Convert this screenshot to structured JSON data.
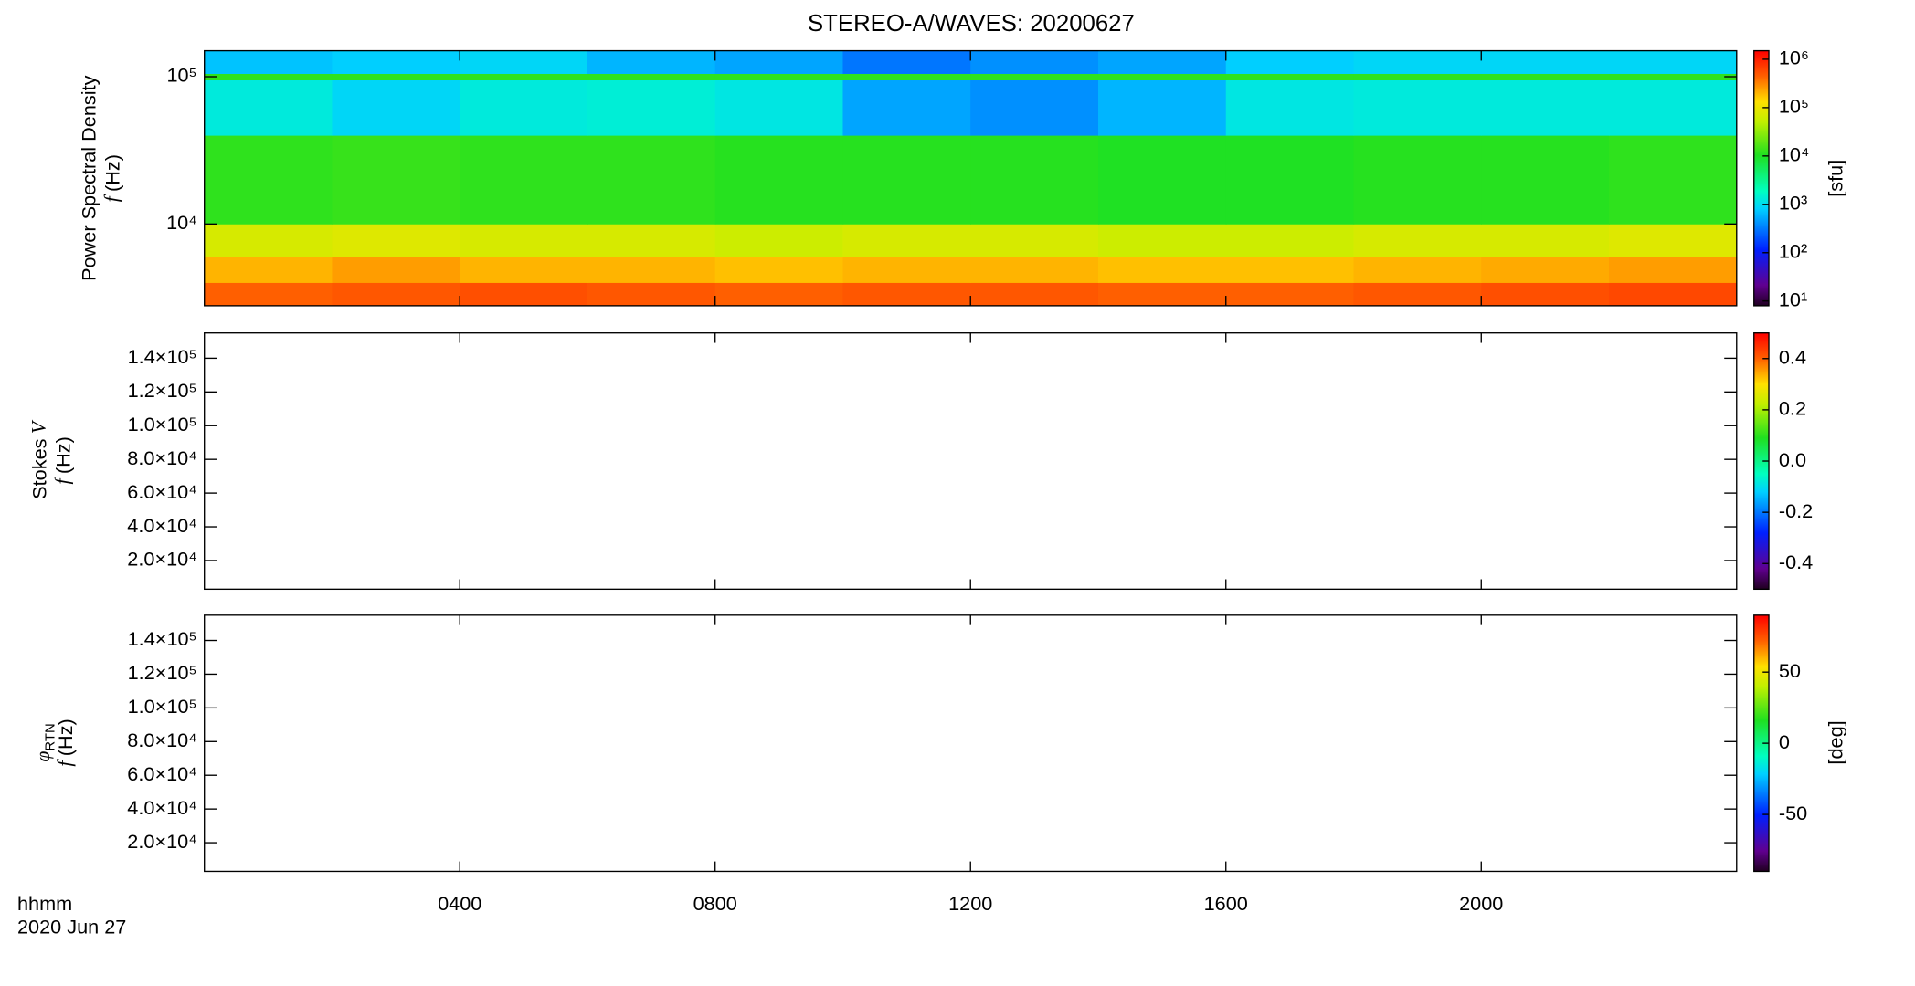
{
  "title": "STEREO-A/WAVES: 20200627",
  "time_axis": {
    "xlim": [
      0,
      24
    ],
    "xticks": [
      {
        "value": 4,
        "label": "0400"
      },
      {
        "value": 8,
        "label": "0800"
      },
      {
        "value": 12,
        "label": "1200"
      },
      {
        "value": 16,
        "label": "1600"
      },
      {
        "value": 20,
        "label": "2000"
      }
    ],
    "label": "hhmm",
    "date": "2020 Jun 27"
  },
  "chart_data": [
    {
      "type": "heatmap",
      "ylabel": "Power Spectral Density",
      "yvar": "f",
      "yunit": "(Hz)",
      "ylog": true,
      "ylim": [
        2786,
        150000
      ],
      "yticks": [
        {
          "value": 10000,
          "label": "10⁴"
        },
        {
          "value": 100000,
          "label": "10⁵"
        }
      ],
      "colormap": "rainbow",
      "time_bins": [
        0,
        2,
        4,
        6,
        8,
        10,
        12,
        14,
        16,
        18,
        20,
        22,
        24
      ],
      "y_bins": [
        2786,
        4000,
        6000,
        10000,
        40000,
        95000,
        105000,
        150000
      ],
      "z": [
        [
          450000,
          500000,
          550000,
          500000,
          450000,
          500000,
          500000,
          450000,
          450000,
          500000,
          550000,
          600000
        ],
        [
          200000,
          250000,
          200000,
          200000,
          180000,
          200000,
          200000,
          180000,
          180000,
          200000,
          220000,
          250000
        ],
        [
          70000,
          80000,
          70000,
          70000,
          60000,
          70000,
          70000,
          60000,
          60000,
          70000,
          70000,
          80000
        ],
        [
          12000,
          13000,
          12000,
          12000,
          11000,
          11000,
          11000,
          10000,
          10000,
          11000,
          11000,
          12000
        ],
        [
          1300,
          900,
          1300,
          1400,
          1200,
          500,
          400,
          600,
          1200,
          1300,
          1300,
          1300
        ],
        [
          12000,
          12000,
          12000,
          12000,
          12000,
          12000,
          12000,
          12000,
          12000,
          12000,
          12000,
          12000
        ],
        [
          700,
          800,
          900,
          600,
          500,
          300,
          400,
          500,
          800,
          900,
          900,
          900
        ]
      ],
      "colorbar": {
        "log": true,
        "lim": [
          8,
          1500000
        ],
        "label": "[sfu]",
        "ticks": [
          {
            "value": 10,
            "label": "10¹"
          },
          {
            "value": 100,
            "label": "10²"
          },
          {
            "value": 1000,
            "label": "10³"
          },
          {
            "value": 10000,
            "label": "10⁴"
          },
          {
            "value": 100000,
            "label": "10⁵"
          },
          {
            "value": 1000000,
            "label": "10⁶"
          }
        ]
      }
    },
    {
      "type": "heatmap",
      "ylabel": "Stokes",
      "ylabel_var": "V",
      "yvar": "f",
      "yunit": "(Hz)",
      "ylog": false,
      "ylim": [
        3000,
        155000
      ],
      "yticks": [
        {
          "value": 20000,
          "label": "2.0×10⁴"
        },
        {
          "value": 40000,
          "label": "4.0×10⁴"
        },
        {
          "value": 60000,
          "label": "6.0×10⁴"
        },
        {
          "value": 80000,
          "label": "8.0×10⁴"
        },
        {
          "value": 100000,
          "label": "1.0×10⁵"
        },
        {
          "value": 120000,
          "label": "1.2×10⁵"
        },
        {
          "value": 140000,
          "label": "1.4×10⁵"
        }
      ],
      "colormap": "rainbow",
      "colorbar": {
        "log": false,
        "lim": [
          -0.5,
          0.5
        ],
        "ticks": [
          -0.4,
          -0.2,
          {
            "value": 0,
            "label": "0.0"
          },
          0.2,
          0.4
        ]
      }
    },
    {
      "type": "heatmap",
      "ylabel_sym": "φ",
      "ylabel_sub": "RTN",
      "yvar": "f",
      "yunit": "(Hz)",
      "ylog": false,
      "ylim": [
        3000,
        155000
      ],
      "yticks": [
        {
          "value": 20000,
          "label": "2.0×10⁴"
        },
        {
          "value": 40000,
          "label": "4.0×10⁴"
        },
        {
          "value": 60000,
          "label": "6.0×10⁴"
        },
        {
          "value": 80000,
          "label": "8.0×10⁴"
        },
        {
          "value": 100000,
          "label": "1.0×10⁵"
        },
        {
          "value": 120000,
          "label": "1.2×10⁵"
        },
        {
          "value": 140000,
          "label": "1.4×10⁵"
        }
      ],
      "colormap": "rainbow",
      "colorbar": {
        "log": false,
        "lim": [
          -90,
          90
        ],
        "label": "[deg]",
        "ticks": [
          -50,
          0,
          50
        ]
      }
    }
  ]
}
